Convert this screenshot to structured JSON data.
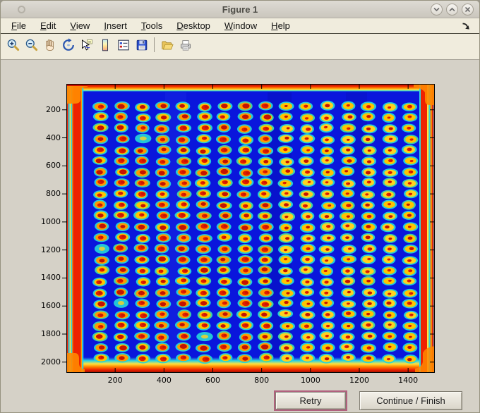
{
  "window": {
    "title": "Figure 1",
    "controls": [
      {
        "name": "minimize",
        "glyph": "chevron-down"
      },
      {
        "name": "maximize",
        "glyph": "chevron-up"
      },
      {
        "name": "close",
        "glyph": "x"
      }
    ]
  },
  "menu": {
    "items": [
      "File",
      "Edit",
      "View",
      "Insert",
      "Tools",
      "Desktop",
      "Window",
      "Help"
    ],
    "dock_icon": "dock-arrow"
  },
  "toolbar": {
    "groups": [
      [
        "zoom-in",
        "zoom-out",
        "pan",
        "rotate-3d",
        "data-cursor",
        "insert-colorbar",
        "insert-legend",
        "save-figure"
      ],
      [
        "open-file",
        "print-figure"
      ]
    ]
  },
  "buttons": {
    "retry": "Retry",
    "continue": "Continue / Finish"
  },
  "chart_data": {
    "type": "heatmap",
    "title": "",
    "description": "False-color (jet colormap) intensity image of a spotted micro-plate: 16 columns x 24 rows of hot elliptical spots (red/orange cores with cyan halos) on a blue background, with hot red/orange bands along all four image edges.",
    "x_ticks": [
      200,
      400,
      600,
      800,
      1000,
      1200,
      1400
    ],
    "y_ticks": [
      200,
      400,
      600,
      800,
      1000,
      1200,
      1400,
      1600,
      1800,
      2000
    ],
    "x_range": [
      0,
      1510
    ],
    "y_range": [
      0,
      2075
    ],
    "grid": {
      "cols": 16,
      "rows": 24
    },
    "colormap": "jet",
    "legend": "none",
    "faded_spots": [
      [
        3,
        2
      ],
      [
        13,
        0
      ],
      [
        18,
        1
      ],
      [
        21,
        5
      ]
    ],
    "colors": {
      "background": "#0a16dc",
      "spot_outer": [
        "#25d5d8",
        "#3fd9a6"
      ],
      "spot_mid": [
        "#ffc400",
        "#ff9900",
        "#ffd21f"
      ],
      "spot_core": [
        "#e11e00",
        "#c41300"
      ],
      "edge_hot": "#ee2200",
      "edge_warm": "#ff8800",
      "edge_yellow": "#ffe23c",
      "edge_cyan": "#2fd3e0",
      "edge_dark": "#991000"
    }
  }
}
